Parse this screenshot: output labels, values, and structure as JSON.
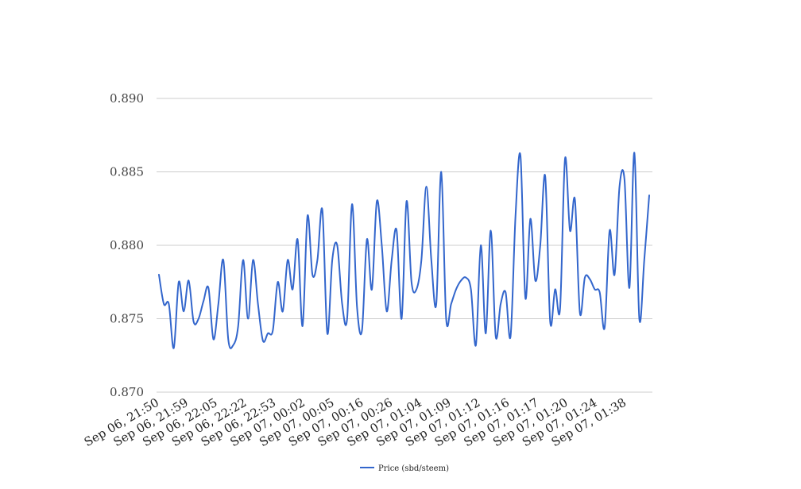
{
  "chart_data": {
    "type": "line",
    "title": "",
    "xlabel": "",
    "ylabel": "",
    "ylim": [
      0.87,
      0.89
    ],
    "yticks": [
      "0.870",
      "0.875",
      "0.880",
      "0.885",
      "0.890"
    ],
    "grid": true,
    "legend_position": "bottom",
    "x_tick_labels": [
      "Sep 06, 21:50",
      "Sep 06, 21:59",
      "Sep 06, 22:05",
      "Sep 06, 22:22",
      "Sep 06, 22:53",
      "Sep 07, 00:02",
      "Sep 07, 00:05",
      "Sep 07, 00:16",
      "Sep 07, 00:26",
      "Sep 07, 01:04",
      "Sep 07, 01:09",
      "Sep 07, 01:12",
      "Sep 07, 01:16",
      "Sep 07, 01:17",
      "Sep 07, 01:20",
      "Sep 07, 01:24",
      "Sep 07, 01:38"
    ],
    "series": [
      {
        "name": "Price (sbd/steem)",
        "color": "#3366cc",
        "values": [
          0.878,
          0.876,
          0.876,
          0.873,
          0.8775,
          0.8755,
          0.8776,
          0.8748,
          0.875,
          0.8762,
          0.8771,
          0.8736,
          0.876,
          0.879,
          0.8736,
          0.8732,
          0.8745,
          0.879,
          0.875,
          0.879,
          0.876,
          0.8735,
          0.874,
          0.8742,
          0.8775,
          0.8755,
          0.879,
          0.877,
          0.8804,
          0.8745,
          0.882,
          0.878,
          0.879,
          0.8824,
          0.874,
          0.879,
          0.88,
          0.876,
          0.875,
          0.8828,
          0.8758,
          0.8742,
          0.8804,
          0.877,
          0.883,
          0.88,
          0.8755,
          0.879,
          0.881,
          0.875,
          0.883,
          0.8775,
          0.877,
          0.879,
          0.884,
          0.879,
          0.876,
          0.885,
          0.875,
          0.876,
          0.877,
          0.8776,
          0.8778,
          0.877,
          0.8732,
          0.88,
          0.874,
          0.881,
          0.8738,
          0.876,
          0.8768,
          0.8738,
          0.882,
          0.8861,
          0.8764,
          0.8818,
          0.8776,
          0.88,
          0.8847,
          0.8748,
          0.877,
          0.8757,
          0.8859,
          0.881,
          0.8831,
          0.8754,
          0.8778,
          0.8777,
          0.877,
          0.8768,
          0.8744,
          0.881,
          0.878,
          0.884,
          0.8845,
          0.8771,
          0.8863,
          0.875,
          0.879,
          0.8834
        ]
      }
    ]
  }
}
